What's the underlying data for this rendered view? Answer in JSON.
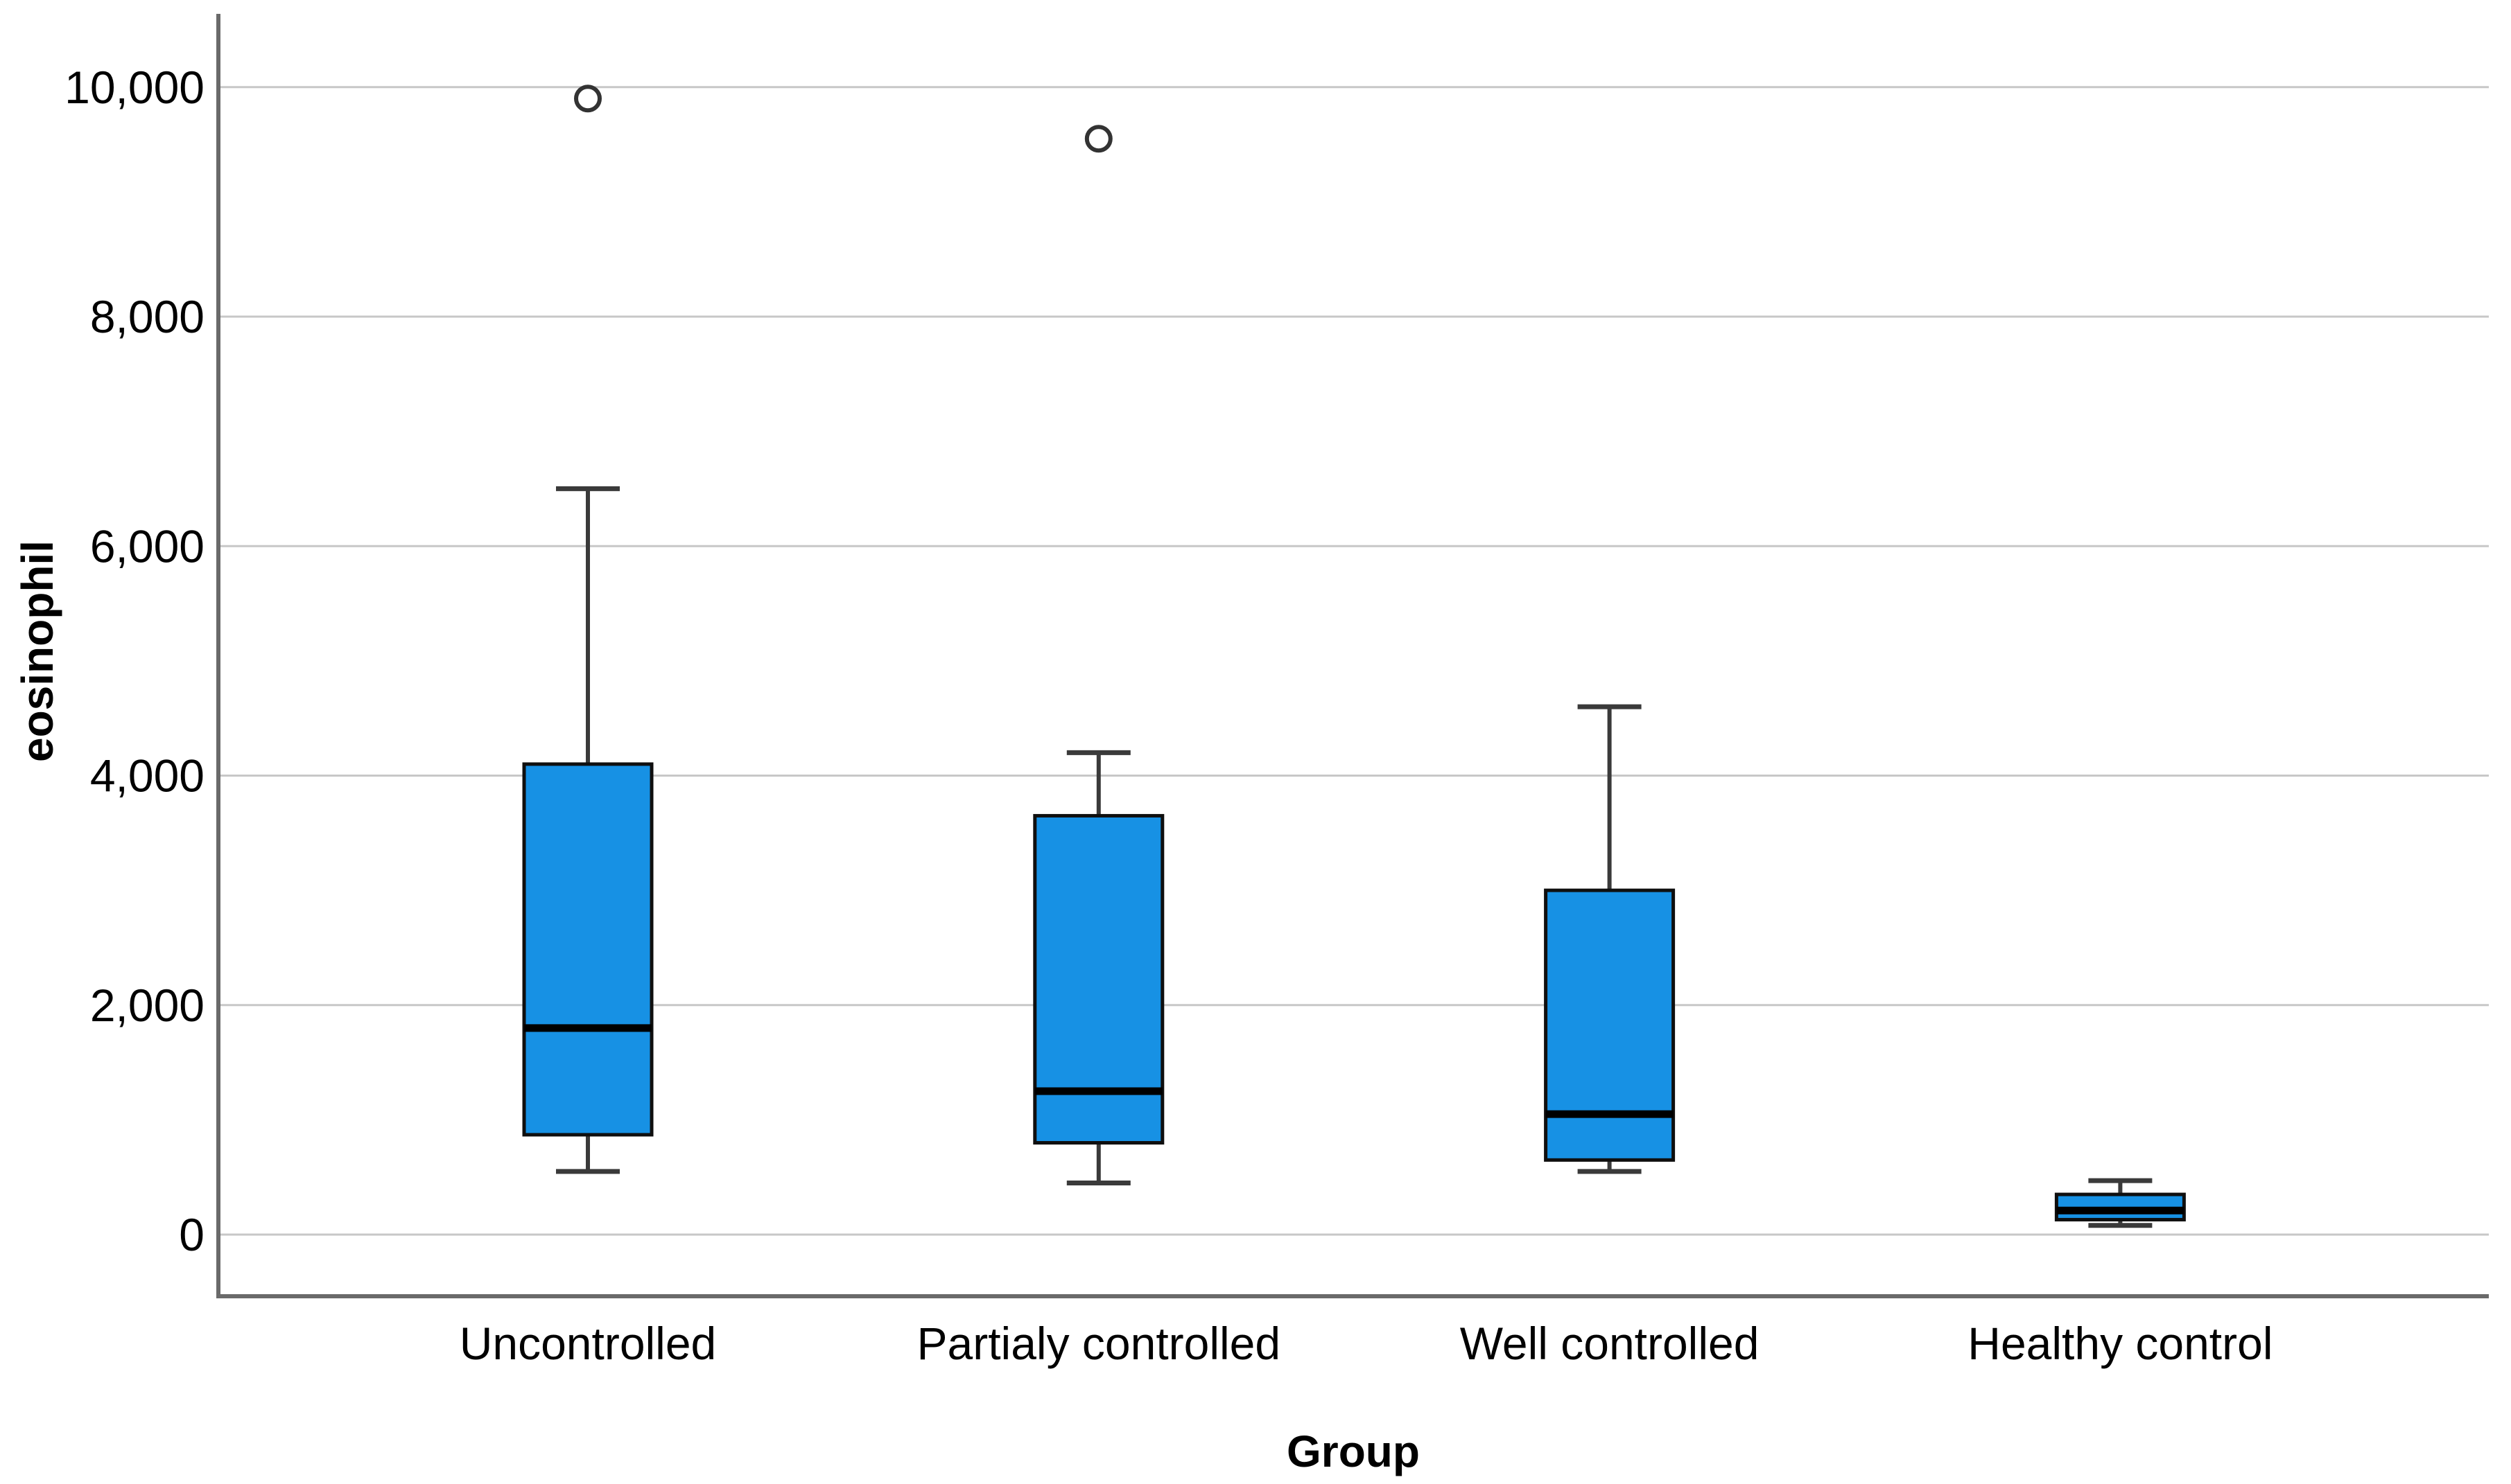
{
  "figure": {
    "background": "#ffffff"
  },
  "chart_data": {
    "type": "box",
    "title": "",
    "xlabel": "Group",
    "ylabel": "eosinophil",
    "grid": "horizontal",
    "legend": "none",
    "ylim": [
      -540,
      10650
    ],
    "y_ticks": [
      {
        "value": 0,
        "label": "0"
      },
      {
        "value": 2000,
        "label": "2,000"
      },
      {
        "value": 4000,
        "label": "4,000"
      },
      {
        "value": 6000,
        "label": "6,000"
      },
      {
        "value": 8000,
        "label": "8,000"
      },
      {
        "value": 10000,
        "label": "10,000"
      }
    ],
    "categories": [
      "Uncontrolled",
      "Partialy controlled",
      "Well controlled",
      "Healthy control"
    ],
    "series": [
      {
        "category": "Uncontrolled",
        "whisker_low": 550,
        "q1": 870,
        "median": 1800,
        "q3": 4100,
        "whisker_high": 6500,
        "outliers": [
          9900
        ]
      },
      {
        "category": "Partialy controlled",
        "whisker_low": 450,
        "q1": 800,
        "median": 1250,
        "q3": 3650,
        "whisker_high": 4200,
        "outliers": [
          9550
        ]
      },
      {
        "category": "Well controlled",
        "whisker_low": 550,
        "q1": 650,
        "median": 1050,
        "q3": 3000,
        "whisker_high": 4600,
        "outliers": []
      },
      {
        "category": "Healthy control",
        "whisker_low": 80,
        "q1": 130,
        "median": 210,
        "q3": 350,
        "whisker_high": 470,
        "outliers": []
      }
    ],
    "colors": {
      "box_fill": "#1791E4",
      "box_border": "#0f0f0f",
      "median": "#000000",
      "whisker": "#3a3a3a",
      "outlier_stroke": "#333333",
      "gridline": "#c7c7c7",
      "axis_line": "#6a6a6a",
      "text": "#000000"
    }
  }
}
